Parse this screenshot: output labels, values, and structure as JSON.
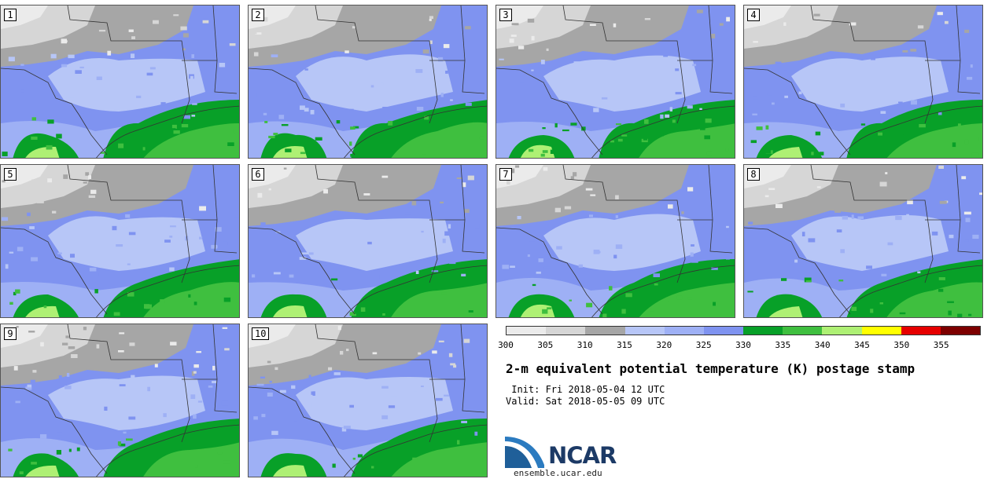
{
  "panels": [
    "1",
    "2",
    "3",
    "4",
    "5",
    "6",
    "7",
    "8",
    "9",
    "10"
  ],
  "colorbar": {
    "ticks": [
      "300",
      "305",
      "310",
      "315",
      "320",
      "325",
      "330",
      "335",
      "340",
      "345",
      "350",
      "355"
    ],
    "colors": [
      "#ebebeb",
      "#d6d6d6",
      "#a6a6a6",
      "#b7c6f7",
      "#9eb0f5",
      "#7f93f0",
      "#08a028",
      "#3fbf3f",
      "#aef074",
      "#ffff00",
      "#e60000",
      "#7d0000"
    ]
  },
  "title": "2-m equivalent potential temperature (K) postage stamp",
  "init": " Init: Fri 2018-05-04 12 UTC",
  "valid": "Valid: Sat 2018-05-05 09 UTC",
  "logo_text": "NCAR",
  "url": "ensemble.ucar.edu"
}
